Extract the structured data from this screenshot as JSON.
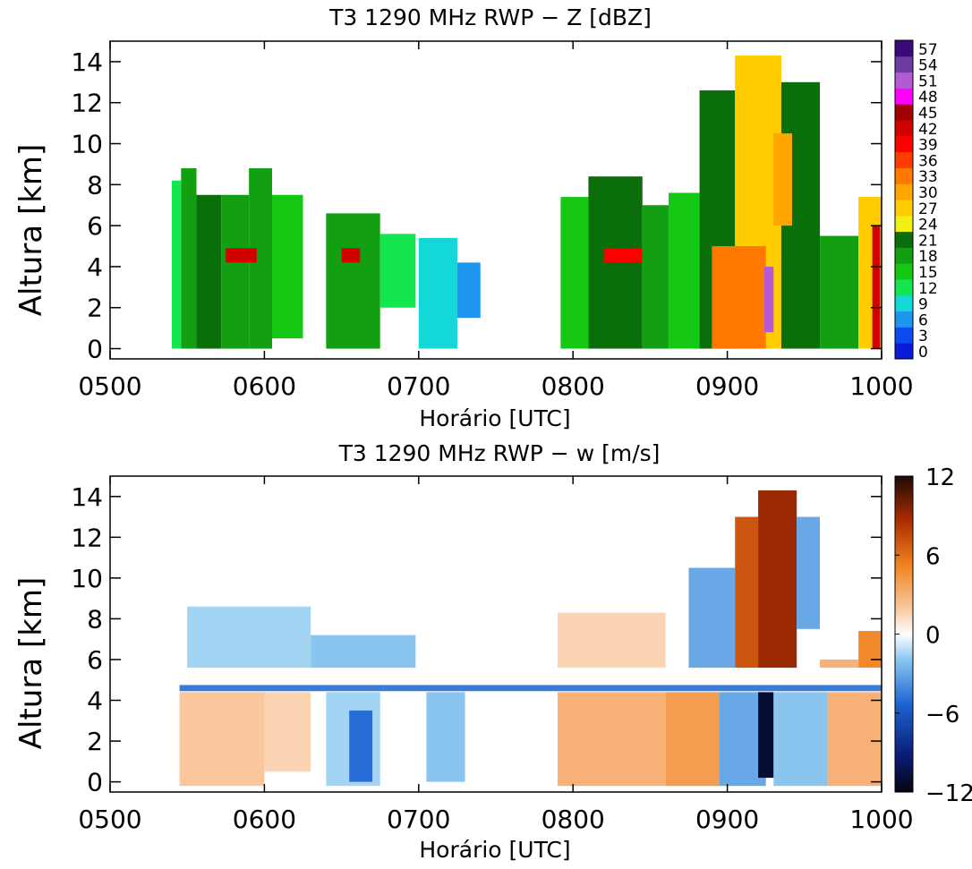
{
  "chart_data": [
    {
      "type": "heatmap",
      "title": "T3 1290 MHz RWP − Z [dBZ]",
      "xlabel": "Horário [UTC]",
      "ylabel": "Altura [km]",
      "xticks": [
        "0500",
        "0600",
        "0700",
        "0800",
        "0900",
        "1000"
      ],
      "xlim_hours": [
        5,
        10
      ],
      "yticks": [
        "0",
        "2",
        "4",
        "6",
        "8",
        "10",
        "12",
        "14"
      ],
      "ylim": [
        -0.5,
        15
      ],
      "grid": false,
      "colorbar": {
        "labels": [
          "0",
          "3",
          "6",
          "9",
          "12",
          "15",
          "18",
          "21",
          "24",
          "27",
          "30",
          "33",
          "36",
          "39",
          "42",
          "45",
          "48",
          "51",
          "54",
          "57"
        ],
        "colors": [
          "#0a1ad8",
          "#0a4cf0",
          "#1e96f0",
          "#14d8d8",
          "#14e650",
          "#14c814",
          "#12a012",
          "#0a6e0a",
          "#f0f014",
          "#ffcc00",
          "#ffa500",
          "#ff7800",
          "#ff3c00",
          "#ff0000",
          "#d20000",
          "#a00000",
          "#ff00ff",
          "#b45ad2",
          "#6e3ca0",
          "#3c0a78"
        ]
      },
      "cells": [
        {
          "t0": 5.4,
          "t1": 5.46,
          "h0": 0,
          "h1": 8.2,
          "v": 12
        },
        {
          "t0": 5.46,
          "t1": 5.56,
          "h0": 0,
          "h1": 8.8,
          "v": 18
        },
        {
          "t0": 5.56,
          "t1": 5.72,
          "h0": 0,
          "h1": 7.5,
          "v": 21
        },
        {
          "t0": 5.72,
          "t1": 5.9,
          "h0": 0,
          "h1": 7.5,
          "v": 18
        },
        {
          "t0": 5.9,
          "t1": 6.05,
          "h0": 0,
          "h1": 8.8,
          "v": 18
        },
        {
          "t0": 6.05,
          "t1": 6.25,
          "h0": 0.5,
          "h1": 7.5,
          "v": 15
        },
        {
          "t0": 6.4,
          "t1": 6.75,
          "h0": 0,
          "h1": 6.6,
          "v": 18
        },
        {
          "t0": 6.75,
          "t1": 6.98,
          "h0": 2.0,
          "h1": 5.6,
          "v": 12
        },
        {
          "t0": 7.0,
          "t1": 7.25,
          "h0": 0,
          "h1": 5.4,
          "v": 9
        },
        {
          "t0": 7.25,
          "t1": 7.4,
          "h0": 1.5,
          "h1": 4.2,
          "v": 6
        },
        {
          "t0": 7.92,
          "t1": 8.1,
          "h0": 0,
          "h1": 7.4,
          "v": 15
        },
        {
          "t0": 8.1,
          "t1": 8.45,
          "h0": 0,
          "h1": 8.4,
          "v": 21
        },
        {
          "t0": 8.45,
          "t1": 8.62,
          "h0": 0,
          "h1": 7.0,
          "v": 18
        },
        {
          "t0": 8.62,
          "t1": 8.82,
          "h0": 0,
          "h1": 7.6,
          "v": 15
        },
        {
          "t0": 8.82,
          "t1": 9.05,
          "h0": 0,
          "h1": 12.6,
          "v": 21
        },
        {
          "t0": 9.05,
          "t1": 9.35,
          "h0": 0,
          "h1": 14.3,
          "v": 27
        },
        {
          "t0": 9.35,
          "t1": 9.6,
          "h0": 0,
          "h1": 13.0,
          "v": 21
        },
        {
          "t0": 9.6,
          "t1": 9.85,
          "h0": 0,
          "h1": 5.5,
          "v": 18
        },
        {
          "t0": 9.85,
          "t1": 10.0,
          "h0": 0,
          "h1": 7.4,
          "v": 27
        },
        {
          "t0": 5.75,
          "t1": 5.95,
          "h0": 4.2,
          "h1": 4.9,
          "v": 42
        },
        {
          "t0": 6.5,
          "t1": 6.62,
          "h0": 4.2,
          "h1": 4.9,
          "v": 42
        },
        {
          "t0": 8.2,
          "t1": 8.45,
          "h0": 4.2,
          "h1": 4.9,
          "v": 39
        },
        {
          "t0": 8.9,
          "t1": 9.25,
          "h0": 0,
          "h1": 5.0,
          "v": 33
        },
        {
          "t0": 9.24,
          "t1": 9.3,
          "h0": 0.8,
          "h1": 4.0,
          "v": 51
        },
        {
          "t0": 9.3,
          "t1": 9.42,
          "h0": 6.0,
          "h1": 10.5,
          "v": 30
        },
        {
          "t0": 9.94,
          "t1": 9.99,
          "h0": 0,
          "h1": 6.0,
          "v": 42
        }
      ]
    },
    {
      "type": "heatmap",
      "title": "T3 1290 MHz RWP − w [m/s]",
      "xlabel": "Horário [UTC]",
      "ylabel": "Altura [km]",
      "xticks": [
        "0500",
        "0600",
        "0700",
        "0800",
        "0900",
        "1000"
      ],
      "xlim_hours": [
        5,
        10
      ],
      "yticks": [
        "0",
        "2",
        "4",
        "6",
        "8",
        "10",
        "12",
        "14"
      ],
      "ylim": [
        -0.5,
        15
      ],
      "grid": false,
      "colorbar": {
        "labels": [
          "12",
          "6",
          "0",
          "−6",
          "−12"
        ],
        "range": [
          -12,
          12
        ]
      },
      "cells": [
        {
          "t0": 5.45,
          "t1": 6.0,
          "h0": -0.2,
          "h1": 4.4,
          "v": 2
        },
        {
          "t0": 6.0,
          "t1": 6.3,
          "h0": 0.5,
          "h1": 4.4,
          "v": 1.5
        },
        {
          "t0": 6.4,
          "t1": 6.75,
          "h0": -0.2,
          "h1": 4.4,
          "v": -1.5
        },
        {
          "t0": 6.55,
          "t1": 6.7,
          "h0": 0,
          "h1": 3.5,
          "v": -5
        },
        {
          "t0": 7.05,
          "t1": 7.3,
          "h0": 0,
          "h1": 4.4,
          "v": -2
        },
        {
          "t0": 5.5,
          "t1": 6.3,
          "h0": 5.6,
          "h1": 8.6,
          "v": -1.5
        },
        {
          "t0": 6.3,
          "t1": 6.98,
          "h0": 5.6,
          "h1": 7.2,
          "v": -2
        },
        {
          "t0": 5.45,
          "t1": 10.0,
          "h0": 4.45,
          "h1": 4.75,
          "v": -4.5
        },
        {
          "t0": 7.9,
          "t1": 8.6,
          "h0": 5.6,
          "h1": 8.3,
          "v": 1.5
        },
        {
          "t0": 7.9,
          "t1": 8.6,
          "h0": -0.2,
          "h1": 4.4,
          "v": 3
        },
        {
          "t0": 8.6,
          "t1": 8.95,
          "h0": -0.2,
          "h1": 4.4,
          "v": 4
        },
        {
          "t0": 8.95,
          "t1": 9.25,
          "h0": -0.2,
          "h1": 4.4,
          "v": -3
        },
        {
          "t0": 9.2,
          "t1": 9.3,
          "h0": 0.2,
          "h1": 4.4,
          "v": -11
        },
        {
          "t0": 9.3,
          "t1": 9.65,
          "h0": -0.2,
          "h1": 4.4,
          "v": -2
        },
        {
          "t0": 9.65,
          "t1": 10.0,
          "h0": -0.2,
          "h1": 4.4,
          "v": 3
        },
        {
          "t0": 8.75,
          "t1": 9.05,
          "h0": 5.6,
          "h1": 10.5,
          "v": -3
        },
        {
          "t0": 9.05,
          "t1": 9.2,
          "h0": 5.6,
          "h1": 13.0,
          "v": 7
        },
        {
          "t0": 9.2,
          "t1": 9.45,
          "h0": 5.6,
          "h1": 14.3,
          "v": 9
        },
        {
          "t0": 9.45,
          "t1": 9.6,
          "h0": 7.5,
          "h1": 13.0,
          "v": -3
        },
        {
          "t0": 9.6,
          "t1": 9.85,
          "h0": 5.6,
          "h1": 6.0,
          "v": 3
        },
        {
          "t0": 9.85,
          "t1": 10.0,
          "h0": 5.6,
          "h1": 7.4,
          "v": 5
        }
      ]
    }
  ]
}
